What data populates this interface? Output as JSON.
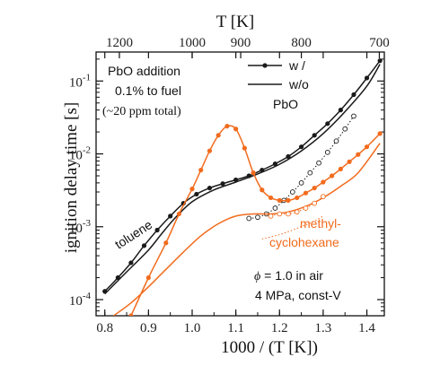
{
  "chart_data": {
    "type": "line",
    "xlabel": "1000 / (T [K])",
    "ylabel": "ignition delay time [s]",
    "top_xlabel": "T [K]",
    "xlim": [
      0.78,
      1.44
    ],
    "ylim": [
      6e-05,
      0.25
    ],
    "yscale": "log",
    "x_ticks": [
      0.8,
      0.9,
      1.0,
      1.1,
      1.2,
      1.3,
      1.4
    ],
    "x_tick_labels": [
      "0.8",
      "0.9",
      "1.0",
      "1.1",
      "1.2",
      "1.3",
      "1.4"
    ],
    "y_ticks": [
      0.0001,
      0.001,
      0.01,
      0.1
    ],
    "y_tick_labels": [
      {
        "base": "10",
        "exp": "-4"
      },
      {
        "base": "10",
        "exp": "-3"
      },
      {
        "base": "10",
        "exp": "-2"
      },
      {
        "base": "10",
        "exp": "-1"
      }
    ],
    "top_ticks": [
      1200,
      1000,
      900,
      800,
      700
    ],
    "top_tick_labels": [
      "1200",
      "1000",
      "900",
      "800",
      "700"
    ],
    "colors": {
      "toluene": "#1a1a1a",
      "methylcyclohexane": "#f26b1d"
    },
    "legend": {
      "position": "top-right",
      "with_label": "w /",
      "without_label": "w/o",
      "suffix": "PbO"
    },
    "annotations": {
      "pbo_line1": "PbO addition",
      "pbo_line2": "0.1% to fuel",
      "pbo_line3": "(~20 ppm total)",
      "toluene": "toluene",
      "mch_line1": "methyl-",
      "mch_line2": "cyclohexane",
      "phi_symbol": "ϕ",
      "phi_rest": " = 1.0 in air",
      "conditions": "4 MPa, const-V"
    },
    "series": [
      {
        "name": "toluene w/",
        "color": "#1a1a1a",
        "style": "solid-markers",
        "x": [
          0.8,
          0.83,
          0.86,
          0.89,
          0.92,
          0.95,
          0.98,
          1.01,
          1.04,
          1.07,
          1.1,
          1.13,
          1.16,
          1.19,
          1.22,
          1.25,
          1.28,
          1.31,
          1.34,
          1.37,
          1.4,
          1.43
        ],
        "y": [
          0.00013,
          0.0002,
          0.00032,
          0.00055,
          0.0009,
          0.0014,
          0.0021,
          0.0028,
          0.0034,
          0.0039,
          0.0044,
          0.005,
          0.006,
          0.0073,
          0.0092,
          0.0125,
          0.018,
          0.026,
          0.04,
          0.065,
          0.11,
          0.19
        ]
      },
      {
        "name": "toluene w/o",
        "color": "#1a1a1a",
        "style": "solid",
        "x": [
          0.8,
          0.85,
          0.9,
          0.93,
          0.96,
          1.0,
          1.05,
          1.1,
          1.15,
          1.2,
          1.25,
          1.3,
          1.35,
          1.4,
          1.43
        ],
        "y": [
          0.00012,
          0.00024,
          0.00048,
          0.0008,
          0.0013,
          0.0022,
          0.0032,
          0.0041,
          0.0053,
          0.0072,
          0.011,
          0.019,
          0.038,
          0.085,
          0.17
        ]
      },
      {
        "name": "toluene w/o (measured)",
        "color": "#1a1a1a",
        "style": "dotted-open",
        "x": [
          1.13,
          1.15,
          1.17,
          1.19,
          1.21,
          1.23,
          1.25,
          1.27,
          1.29,
          1.31,
          1.33,
          1.35,
          1.37
        ],
        "y": [
          0.0013,
          0.00135,
          0.0015,
          0.0018,
          0.0023,
          0.003,
          0.004,
          0.0055,
          0.0075,
          0.0105,
          0.015,
          0.022,
          0.033
        ]
      },
      {
        "name": "methylcyclohexane w/",
        "color": "#f26b1d",
        "style": "solid-markers",
        "x": [
          0.86,
          0.9,
          0.94,
          0.97,
          1.0,
          1.02,
          1.04,
          1.06,
          1.08,
          1.1,
          1.12,
          1.14,
          1.16,
          1.18,
          1.2,
          1.22,
          1.24,
          1.26,
          1.28,
          1.3,
          1.32,
          1.34,
          1.36,
          1.38,
          1.4,
          1.43
        ],
        "y": [
          6e-05,
          0.0002,
          0.0006,
          0.0015,
          0.0033,
          0.006,
          0.011,
          0.018,
          0.024,
          0.022,
          0.012,
          0.0055,
          0.0032,
          0.0025,
          0.0023,
          0.0023,
          0.0025,
          0.0029,
          0.0034,
          0.0041,
          0.005,
          0.0062,
          0.0078,
          0.0098,
          0.0125,
          0.019
        ]
      },
      {
        "name": "methylcyclohexane w/o",
        "color": "#f26b1d",
        "style": "solid",
        "x": [
          0.82,
          0.86,
          0.9,
          0.94,
          0.98,
          1.02,
          1.06,
          1.1,
          1.14,
          1.18,
          1.22,
          1.26,
          1.3,
          1.34,
          1.38,
          1.43
        ],
        "y": [
          6e-05,
          9e-05,
          0.00015,
          0.00026,
          0.00045,
          0.00075,
          0.0011,
          0.0014,
          0.0015,
          0.0015,
          0.0016,
          0.0019,
          0.0025,
          0.0036,
          0.0055,
          0.014
        ]
      },
      {
        "name": "methylcyclohexane w/o (measured)",
        "color": "#f26b1d",
        "style": "dotted-open",
        "x": [
          1.18,
          1.2,
          1.22,
          1.24,
          1.26,
          1.28,
          1.3
        ],
        "y": [
          0.0014,
          0.0015,
          0.0015,
          0.0016,
          0.0018,
          0.0021,
          0.0026
        ]
      },
      {
        "name": "methylcyclohexane (dotted)",
        "color": "#f26b1d",
        "style": "dotted",
        "x": [
          1.16,
          1.2,
          1.24,
          1.28,
          1.3
        ],
        "y": [
          0.00068,
          0.00078,
          0.00095,
          0.0012,
          0.0014
        ]
      }
    ]
  }
}
